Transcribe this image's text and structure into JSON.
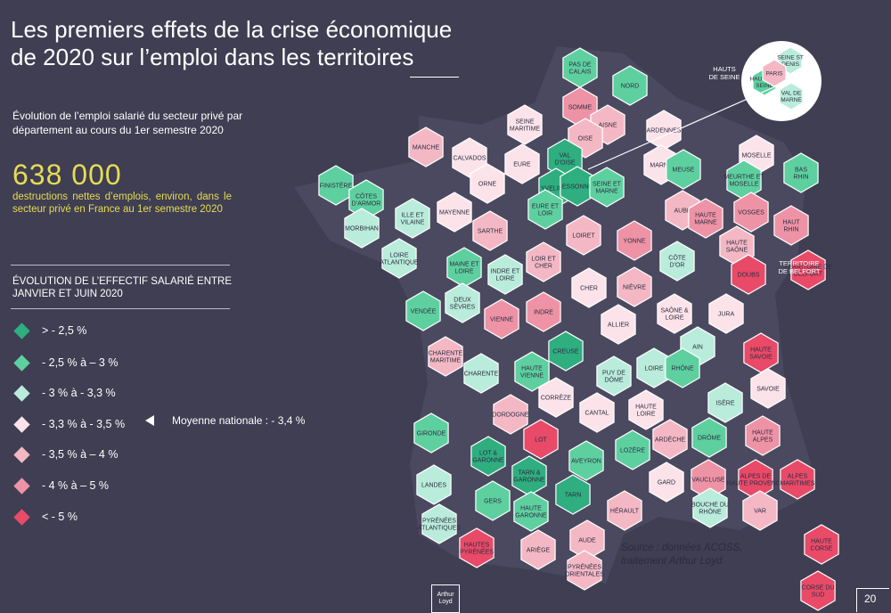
{
  "title": "Les premiers effets de la crise économique de 2020 sur l’emploi dans les territoires",
  "subtitle": "Évolution de l’emploi salarié du secteur privé par département au cours du 1er semestre 2020",
  "headline": {
    "value": "638 000",
    "caption": "destructions nettes d’emplois, environ, dans le secteur privé en France au 1er semestre 2020"
  },
  "legend": {
    "title": "ÉVOLUTION DE L’EFFECTIF SALARIÉ ENTRE JANVIER ET JUIN 2020",
    "items": [
      {
        "label": "> - 2,5 %",
        "color": "#2fae80"
      },
      {
        "label": "- 2,5 % à – 3 %",
        "color": "#5ed0a0"
      },
      {
        "label": "- 3 % à - 3,3 %",
        "color": "#b9ecda"
      },
      {
        "label": "- 3,3 % à - 3,5 %",
        "color": "#fce3ea"
      },
      {
        "label": "- 3,5 % à – 4 %",
        "color": "#f4b8c5"
      },
      {
        "label": "- 4 % à – 5 %",
        "color": "#ee93a6"
      },
      {
        "label": "< - 5 %",
        "color": "#e84a68"
      }
    ],
    "national_average": "Moyenne nationale : - 3,4 %"
  },
  "map": {
    "departments": [
      {
        "name": "PAS DE CALAIS",
        "cls": 1
      },
      {
        "name": "NORD",
        "cls": 1
      },
      {
        "name": "SOMME",
        "cls": 5
      },
      {
        "name": "AISNE",
        "cls": 4
      },
      {
        "name": "ARDENNES",
        "cls": 3
      },
      {
        "name": "SEINE MARITIME",
        "cls": 3
      },
      {
        "name": "OISE",
        "cls": 4
      },
      {
        "name": "MANCHE",
        "cls": 4
      },
      {
        "name": "CALVADOS",
        "cls": 3
      },
      {
        "name": "EURE",
        "cls": 3
      },
      {
        "name": "VAL D'OISE",
        "cls": 0
      },
      {
        "name": "MARNE",
        "cls": 3
      },
      {
        "name": "MEUSE",
        "cls": 1
      },
      {
        "name": "MOSELLE",
        "cls": 3
      },
      {
        "name": "BAS RHIN",
        "cls": 1
      },
      {
        "name": "FINISTÈRE",
        "cls": 1
      },
      {
        "name": "CÔTES D’ARMOR",
        "cls": 1
      },
      {
        "name": "ORNE",
        "cls": 3
      },
      {
        "name": "YVELINES",
        "cls": 0
      },
      {
        "name": "ESSONNE",
        "cls": 0
      },
      {
        "name": "SEINE ET MARNE",
        "cls": 1
      },
      {
        "name": "MEURTHE ET MOSELLE",
        "cls": 1
      },
      {
        "name": "ILLE ET VILAINE",
        "cls": 2
      },
      {
        "name": "MAYENNE",
        "cls": 3
      },
      {
        "name": "EURE ET LOIR",
        "cls": 1
      },
      {
        "name": "AUBE",
        "cls": 4
      },
      {
        "name": "HAUTE MARNE",
        "cls": 5
      },
      {
        "name": "VOSGES",
        "cls": 5
      },
      {
        "name": "HAUT RHIN",
        "cls": 5
      },
      {
        "name": "MORBIHAN",
        "cls": 2
      },
      {
        "name": "SARTHE",
        "cls": 4
      },
      {
        "name": "LOIRET",
        "cls": 4
      },
      {
        "name": "YONNE",
        "cls": 5
      },
      {
        "name": "CÔTE D'OR",
        "cls": 2
      },
      {
        "name": "HAUTE SAÔNE",
        "cls": 4
      },
      {
        "name": "LOIRE ATLANTIQUE",
        "cls": 2
      },
      {
        "name": "MAINE ET LOIRE",
        "cls": 1
      },
      {
        "name": "INDRE ET LOIRE",
        "cls": 2
      },
      {
        "name": "LOIR ET CHER",
        "cls": 4
      },
      {
        "name": "DOUBS",
        "cls": 6
      },
      {
        "name": "TERRITOIRE DE BELFORT",
        "cls": 6
      },
      {
        "name": "CHER",
        "cls": 3
      },
      {
        "name": "NIÈVRE",
        "cls": 4
      },
      {
        "name": "SAÔNE & LOIRE",
        "cls": 3
      },
      {
        "name": "JURA",
        "cls": 3
      },
      {
        "name": "VENDÉE",
        "cls": 1
      },
      {
        "name": "DEUX SÈVRES",
        "cls": 2
      },
      {
        "name": "VIENNE",
        "cls": 5
      },
      {
        "name": "INDRE",
        "cls": 5
      },
      {
        "name": "ALLIER",
        "cls": 3
      },
      {
        "name": "AIN",
        "cls": 2
      },
      {
        "name": "HAUTE SAVOIE",
        "cls": 6
      },
      {
        "name": "CHARENTE MARITIME",
        "cls": 4
      },
      {
        "name": "CHARENTE",
        "cls": 2
      },
      {
        "name": "HAUTE VIENNE",
        "cls": 1
      },
      {
        "name": "CREUSE",
        "cls": 0
      },
      {
        "name": "PUY DE DÔME",
        "cls": 2
      },
      {
        "name": "LOIRE",
        "cls": 2
      },
      {
        "name": "RHÔNE",
        "cls": 1
      },
      {
        "name": "SAVOIE",
        "cls": 3
      },
      {
        "name": "CORRÈZE",
        "cls": 3
      },
      {
        "name": "CANTAL",
        "cls": 3
      },
      {
        "name": "HAUTE LOIRE",
        "cls": 3
      },
      {
        "name": "ISÈRE",
        "cls": 2
      },
      {
        "name": "DORDOGNE",
        "cls": 4
      },
      {
        "name": "GIRONDE",
        "cls": 1
      },
      {
        "name": "LOT",
        "cls": 6
      },
      {
        "name": "LOZÈRE",
        "cls": 1
      },
      {
        "name": "ARDÈCHE",
        "cls": 4
      },
      {
        "name": "DRÔME",
        "cls": 1
      },
      {
        "name": "HAUTE ALPES",
        "cls": 5
      },
      {
        "name": "LOT & GARONNE",
        "cls": 0
      },
      {
        "name": "AVEYRON",
        "cls": 1
      },
      {
        "name": "TARN & GARONNE",
        "cls": 0
      },
      {
        "name": "LANDES",
        "cls": 2
      },
      {
        "name": "GARD",
        "cls": 3
      },
      {
        "name": "VAUCLUSE",
        "cls": 5
      },
      {
        "name": "ALPES DE HAUTE PROVENCE",
        "cls": 6
      },
      {
        "name": "ALPES MARITIMES",
        "cls": 6
      },
      {
        "name": "TARN",
        "cls": 0
      },
      {
        "name": "GERS",
        "cls": 1
      },
      {
        "name": "HAUTE GARONNE",
        "cls": 1
      },
      {
        "name": "HÉRAULT",
        "cls": 4
      },
      {
        "name": "BOUCHE DU RHÔNE",
        "cls": 2
      },
      {
        "name": "VAR",
        "cls": 4
      },
      {
        "name": "PYRÉNÉES ATLANTIQUES",
        "cls": 2
      },
      {
        "name": "HAUTES PYRÉNÉES",
        "cls": 6
      },
      {
        "name": "ARIÈGE",
        "cls": 4
      },
      {
        "name": "AUDE",
        "cls": 4
      },
      {
        "name": "PYRÉNÉES ORIENTALES",
        "cls": 4
      },
      {
        "name": "HAUTE CORSE",
        "cls": 6
      },
      {
        "name": "CORSE DU SUD",
        "cls": 6
      }
    ],
    "inset": {
      "departments": [
        {
          "name": "HAUTS DE SEINE",
          "cls": 1
        },
        {
          "name": "SEINE ST DENIS",
          "cls": 2
        },
        {
          "name": "PARIS",
          "cls": 4
        },
        {
          "name": "VAL DE MARNE",
          "cls": 2
        }
      ]
    }
  },
  "source": "Source : données ACOSS, traitement Arthur Loyd",
  "logo_text": "Arthur Loyd",
  "page_number": "20"
}
